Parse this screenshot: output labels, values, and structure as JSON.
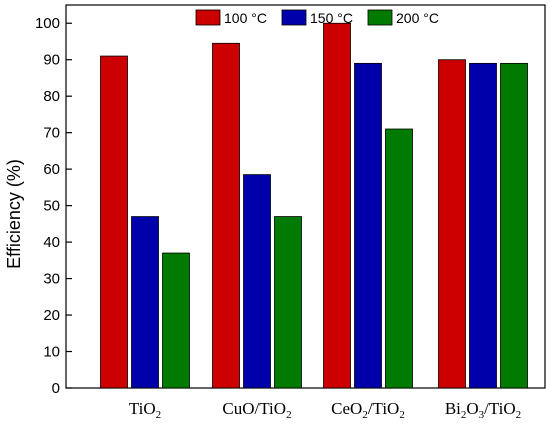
{
  "chart_data": {
    "type": "bar",
    "ylabel": "Efficiency (%)",
    "xlabel": "",
    "ylim": [
      0,
      105
    ],
    "yticks": [
      0,
      10,
      20,
      30,
      40,
      50,
      60,
      70,
      80,
      90,
      100
    ],
    "categories": [
      {
        "label": "TiO2",
        "parts": [
          {
            "t": "TiO"
          },
          {
            "t": "2",
            "sub": true
          }
        ]
      },
      {
        "label": "CuO/TiO2",
        "parts": [
          {
            "t": "CuO/TiO"
          },
          {
            "t": "2",
            "sub": true
          }
        ]
      },
      {
        "label": "CeO2/TiO2",
        "parts": [
          {
            "t": "CeO"
          },
          {
            "t": "2",
            "sub": true
          },
          {
            "t": "/TiO"
          },
          {
            "t": "2",
            "sub": true
          }
        ]
      },
      {
        "label": "Bi2O3/TiO2",
        "parts": [
          {
            "t": "Bi"
          },
          {
            "t": "2",
            "sub": true
          },
          {
            "t": "O"
          },
          {
            "t": "3",
            "sub": true
          },
          {
            "t": "/TiO"
          },
          {
            "t": "2",
            "sub": true
          }
        ]
      }
    ],
    "series": [
      {
        "name": "100 °C",
        "color": "#cc0000",
        "values": [
          91,
          94.5,
          100,
          90
        ]
      },
      {
        "name": "150 °C",
        "color": "#0000aa",
        "values": [
          47,
          58.5,
          89,
          89
        ]
      },
      {
        "name": "200 °C",
        "color": "#007a00",
        "values": [
          37,
          47,
          71,
          89
        ]
      }
    ],
    "legend_position": "top-center",
    "grid": false
  }
}
